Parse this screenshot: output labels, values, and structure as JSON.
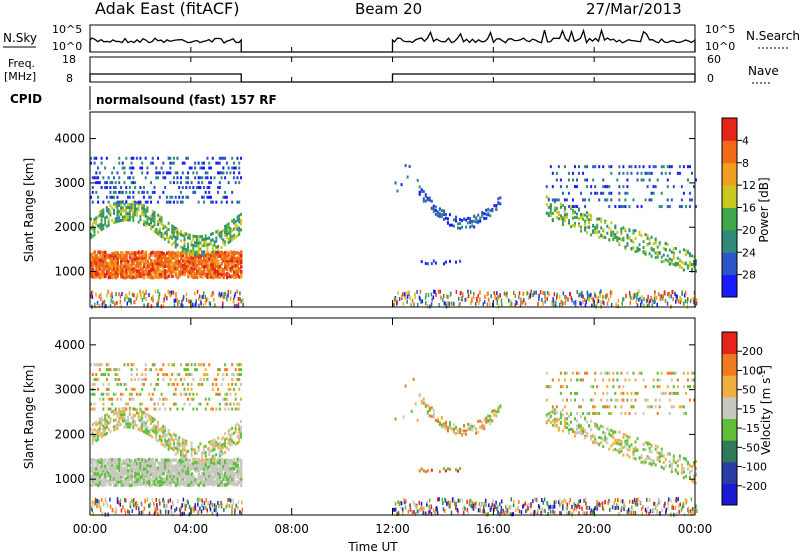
{
  "header": {
    "left_title": "Adak East (fitACF)",
    "center_title": "Beam 20",
    "date": "27/Mar/2013"
  },
  "noise_panel": {
    "left_label": "N.Sky",
    "left_ticks": [
      "10^5",
      "10^0"
    ],
    "right_ticks": [
      "10^5",
      "10^0"
    ],
    "right_label": "N.Search"
  },
  "freq_panel": {
    "left_label_line1": "Freq.",
    "left_label_line2": "[MHz]",
    "left_ticks": [
      "18",
      "8"
    ],
    "right_ticks": [
      "60",
      "0"
    ],
    "right_label": "Nave"
  },
  "cpid": {
    "label": "CPID",
    "program": "normalsound (fast) 157 RF"
  },
  "chart_data": [
    {
      "type": "heatmap",
      "name": "power",
      "ylabel": "Slant Range [km]",
      "yticks": [
        "1000",
        "2000",
        "3000",
        "4000"
      ],
      "ylim": [
        200,
        4600
      ],
      "xlim_hours": [
        0,
        24
      ],
      "colorbar": {
        "label": "Power [dB]",
        "ticks": [
          "4",
          "8",
          "12",
          "16",
          "20",
          "24",
          "28"
        ],
        "colors": [
          "#1a1aff",
          "#2b55c8",
          "#2f8a7a",
          "#3fa64a",
          "#c8c81e",
          "#f0a020",
          "#f06a1a",
          "#e6241a"
        ]
      },
      "data_intervals_hours": [
        [
          0,
          6
        ],
        [
          12,
          24
        ]
      ]
    },
    {
      "type": "heatmap",
      "name": "velocity",
      "ylabel": "Slant Range [km]",
      "yticks": [
        "1000",
        "2000",
        "3000",
        "4000"
      ],
      "ylim": [
        200,
        4600
      ],
      "xlim_hours": [
        0,
        24
      ],
      "xlabel": "Time UT",
      "xticks": [
        "00:00",
        "04:00",
        "08:00",
        "12:00",
        "16:00",
        "20:00",
        "00:00"
      ],
      "colorbar": {
        "label_main": "Velocity [m s",
        "label_sup": "-1",
        "label_end": "]",
        "ticks": [
          "200",
          "100",
          "50",
          "15",
          "-15",
          "-50",
          "-100",
          "-200"
        ],
        "colors": [
          "#1a1ad2",
          "#2b3ca8",
          "#2f7a5a",
          "#5fbf3a",
          "#c8c8c0",
          "#f0b040",
          "#f07a20",
          "#e6241a"
        ]
      },
      "data_intervals_hours": [
        [
          0,
          6
        ],
        [
          12,
          24
        ]
      ]
    }
  ]
}
